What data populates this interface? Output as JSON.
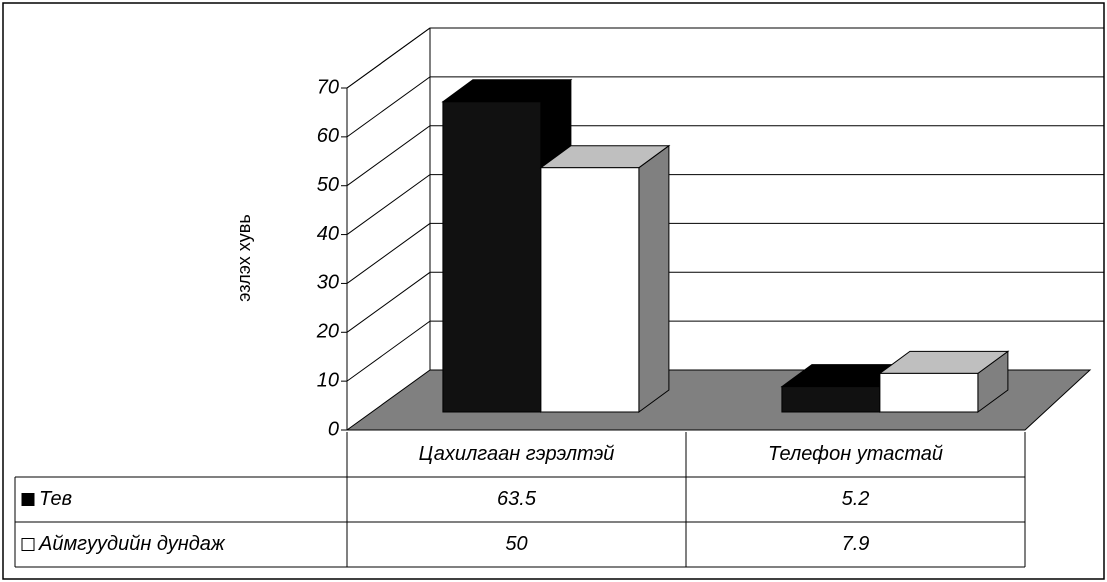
{
  "chart_data": {
    "type": "bar3d",
    "y_label": "эзлэх хувь",
    "categories": [
      "Цахилгаан гэрэлтэй",
      "Телефон утастай"
    ],
    "series": [
      {
        "name": "Тев",
        "color": "#000000",
        "values": [
          63.5,
          5.2
        ]
      },
      {
        "name": "Аймгуудийн дундаж",
        "color": "#ffffff",
        "values": [
          50,
          7.9
        ]
      }
    ],
    "ylim": [
      0,
      70
    ],
    "yticks": [
      0,
      10,
      20,
      30,
      40,
      50,
      60,
      70
    ],
    "grid": true,
    "data_table": true
  }
}
